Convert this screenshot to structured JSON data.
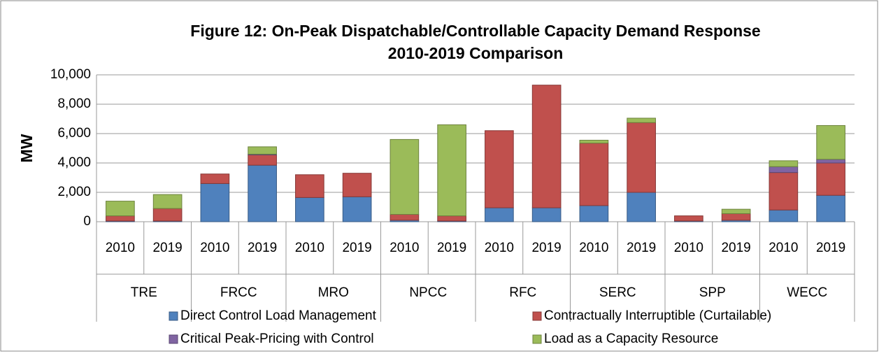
{
  "chart_data": {
    "type": "stacked_bar",
    "title": "Figure 12: On-Peak Dispatchable/Controllable Capacity Demand Response",
    "subtitle": "2010-2019 Comparison",
    "y_label": "MW",
    "categories": [
      "2010",
      "2019",
      "2010",
      "2019",
      "2010",
      "2019",
      "2010",
      "2019",
      "2010",
      "2019",
      "2010",
      "2019",
      "2010",
      "2019",
      "2010",
      "2019"
    ],
    "groups": [
      "TRE",
      "FRCC",
      "MRO",
      "NPCC",
      "RFC",
      "SERC",
      "SPP",
      "WECC"
    ],
    "series": [
      {
        "name": "Direct Control Load Management",
        "color": "#4f81bd",
        "values": [
          50,
          50,
          2600,
          3850,
          1650,
          1700,
          100,
          50,
          950,
          950,
          1100,
          2000,
          50,
          100,
          800,
          1800
        ]
      },
      {
        "name": "Contractually Interruptible (Curtailable)",
        "color": "#c0504d",
        "values": [
          350,
          850,
          650,
          700,
          1550,
          1600,
          400,
          350,
          5250,
          8350,
          4250,
          4750,
          350,
          450,
          2550,
          2200
        ]
      },
      {
        "name": "Critical Peak-Pricing with Control",
        "color": "#8064a2",
        "values": [
          0,
          0,
          0,
          50,
          0,
          0,
          0,
          0,
          0,
          0,
          0,
          0,
          0,
          0,
          400,
          250
        ]
      },
      {
        "name": "Load as a Capacity Resource",
        "color": "#9bbb59",
        "values": [
          1000,
          950,
          0,
          500,
          0,
          0,
          5100,
          6200,
          0,
          0,
          200,
          300,
          0,
          300,
          400,
          2300
        ]
      }
    ],
    "ylim": [
      0,
      10000
    ],
    "yticks": [
      0,
      {
        "value": 2000,
        "label": "2,000"
      },
      {
        "value": 4000,
        "label": "4,000"
      },
      {
        "value": 6000,
        "label": "6,000"
      },
      {
        "value": 8000,
        "label": "8,000"
      },
      {
        "value": 10000,
        "label": "10,000"
      }
    ],
    "grid": true,
    "legend": "bottom"
  }
}
